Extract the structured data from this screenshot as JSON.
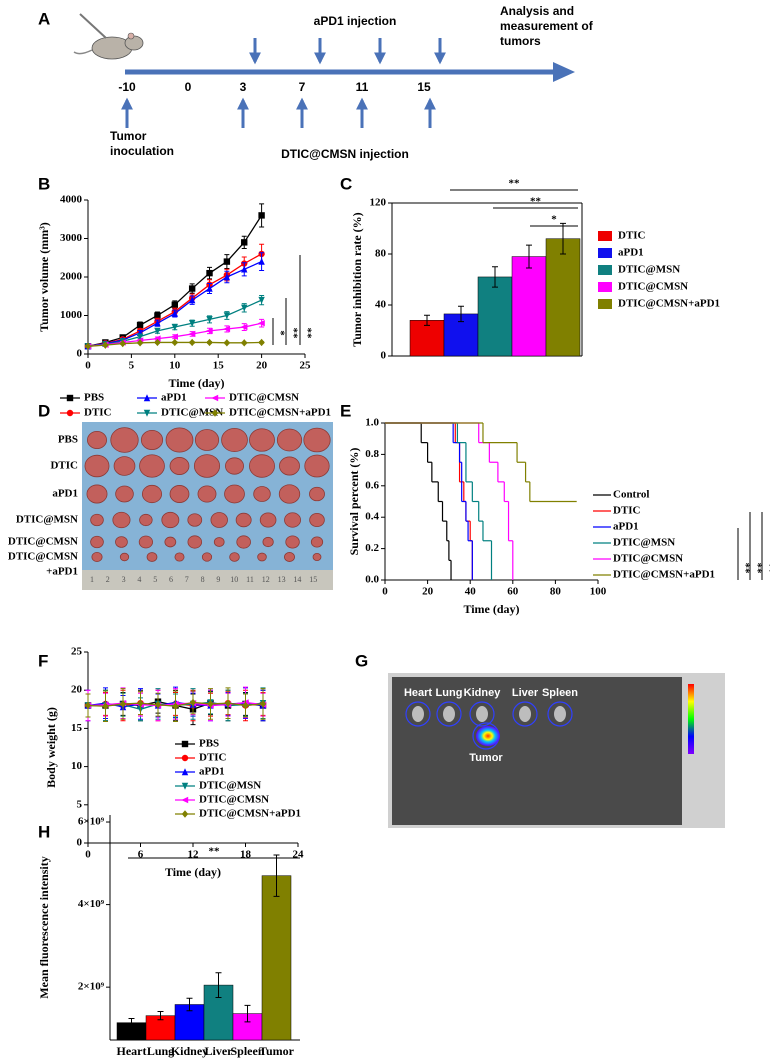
{
  "timeline": {
    "panel_label": "A",
    "top_label": "aPD1 injection",
    "end_label": [
      "Analysis and",
      "measurement of",
      "tumors"
    ],
    "days": [
      -10,
      0,
      3,
      7,
      11,
      15
    ],
    "start_label": [
      "Tumor",
      "inoculation"
    ],
    "bottom_label": "DTIC@CMSN injection"
  },
  "chart_data": [
    {
      "type": "line",
      "panel_label": "B",
      "xlabel": "Time (day)",
      "ylabel": "Tumor volume (mm³)",
      "x": [
        0,
        2,
        4,
        6,
        8,
        10,
        12,
        14,
        16,
        18,
        20
      ],
      "xlim": [
        0,
        25
      ],
      "xticks": [
        0,
        5,
        10,
        15,
        20,
        25
      ],
      "ylim": [
        0,
        4000
      ],
      "yticks": [
        0,
        1000,
        2000,
        3000,
        4000
      ],
      "legend": "bottom",
      "series": [
        {
          "name": "PBS",
          "color": "#000000",
          "marker": "square",
          "values": [
            200,
            300,
            430,
            750,
            1000,
            1280,
            1700,
            2100,
            2400,
            2900,
            3600
          ],
          "errors": [
            20,
            30,
            50,
            80,
            90,
            100,
            120,
            150,
            180,
            160,
            300
          ]
        },
        {
          "name": "DTIC",
          "color": "#ff0000",
          "marker": "circle",
          "values": [
            200,
            280,
            380,
            600,
            850,
            1100,
            1450,
            1800,
            2050,
            2350,
            2600
          ],
          "errors": [
            20,
            25,
            40,
            60,
            80,
            90,
            110,
            130,
            150,
            170,
            250
          ]
        },
        {
          "name": "aPD1",
          "color": "#0000ff",
          "marker": "triangle",
          "values": [
            200,
            270,
            360,
            550,
            800,
            1050,
            1400,
            1700,
            2000,
            2200,
            2400
          ],
          "errors": [
            20,
            25,
            40,
            60,
            80,
            90,
            110,
            130,
            150,
            170,
            230
          ]
        },
        {
          "name": "DTIC@MSN",
          "color": "#008080",
          "marker": "triangle-down",
          "values": [
            200,
            250,
            330,
            450,
            600,
            700,
            800,
            900,
            1000,
            1200,
            1400
          ],
          "errors": [
            20,
            20,
            30,
            50,
            60,
            70,
            80,
            90,
            100,
            110,
            120
          ]
        },
        {
          "name": "DTIC@CMSN",
          "color": "#ff00ff",
          "marker": "triangle-left",
          "values": [
            200,
            240,
            300,
            350,
            400,
            450,
            520,
            600,
            650,
            700,
            800
          ],
          "errors": [
            20,
            20,
            25,
            30,
            40,
            50,
            60,
            70,
            80,
            90,
            100
          ]
        },
        {
          "name": "DTIC@CMSN+aPD1",
          "color": "#808000",
          "marker": "diamond",
          "values": [
            200,
            230,
            270,
            290,
            300,
            300,
            300,
            300,
            290,
            290,
            300
          ],
          "errors": [
            20,
            20,
            20,
            20,
            20,
            20,
            20,
            20,
            20,
            20,
            20
          ]
        }
      ],
      "significance": [
        "*",
        "**",
        "**"
      ]
    },
    {
      "type": "bar",
      "panel_label": "C",
      "ylabel": "Tumor inhibition rate (%)",
      "categories": [
        "DTIC",
        "aPD1",
        "DTIC@MSN",
        "DTIC@CMSN",
        "DTIC@CMSN+aPD1"
      ],
      "values": [
        28,
        33,
        62,
        78,
        92
      ],
      "errors": [
        4,
        6,
        8,
        9,
        12
      ],
      "colors": [
        "#ee0000",
        "#1010ee",
        "#108080",
        "#ff00ff",
        "#808000"
      ],
      "ylim": [
        0,
        120
      ],
      "yticks": [
        0,
        40,
        80,
        120
      ],
      "legend": "right",
      "frame": "box",
      "significance": [
        "**",
        "**",
        "*"
      ]
    },
    {
      "type": "step",
      "panel_label": "E",
      "xlabel": "Time (day)",
      "ylabel": "Survival percent (%)",
      "xlim": [
        0,
        100
      ],
      "xticks": [
        0,
        20,
        40,
        60,
        80,
        100
      ],
      "ylim": [
        0,
        1
      ],
      "yticks": [
        {
          "value": 0,
          "label": "0.0"
        },
        0.2,
        0.4,
        0.6,
        0.8,
        {
          "value": 1,
          "label": "1.0"
        }
      ],
      "legend": "right",
      "series": [
        {
          "name": "Control",
          "color": "#000000",
          "x": [
            0,
            17,
            20,
            22,
            25,
            27,
            29,
            30,
            31
          ],
          "values": [
            1,
            0.875,
            0.75,
            0.625,
            0.5,
            0.375,
            0.25,
            0.125,
            0
          ]
        },
        {
          "name": "DTIC",
          "color": "#ff0000",
          "x": [
            0,
            33,
            35,
            37,
            38,
            40,
            41
          ],
          "values": [
            1,
            0.875,
            0.625,
            0.5,
            0.375,
            0.25,
            0
          ]
        },
        {
          "name": "aPD1",
          "color": "#0000ff",
          "x": [
            0,
            32,
            35,
            36,
            38,
            39,
            41
          ],
          "values": [
            1,
            0.875,
            0.75,
            0.5,
            0.375,
            0.25,
            0
          ]
        },
        {
          "name": "DTIC@MSN",
          "color": "#008080",
          "x": [
            0,
            34,
            38,
            41,
            44,
            46,
            50
          ],
          "values": [
            1,
            0.875,
            0.625,
            0.5,
            0.375,
            0.25,
            0
          ]
        },
        {
          "name": "DTIC@CMSN",
          "color": "#ff00ff",
          "x": [
            0,
            44,
            49,
            53,
            56,
            58,
            60
          ],
          "values": [
            1,
            0.875,
            0.75,
            0.625,
            0.5,
            0.25,
            0
          ]
        },
        {
          "name": "DTIC@CMSN+aPD1",
          "color": "#808000",
          "x": [
            0,
            46,
            62,
            66,
            68,
            90
          ],
          "values": [
            1,
            0.875,
            0.75,
            0.625,
            0.5,
            0.5
          ]
        }
      ],
      "significance": [
        "**",
        "**",
        "**"
      ]
    },
    {
      "type": "line",
      "panel_label": "F",
      "xlabel": "Time (day)",
      "ylabel": "Body weight (g)",
      "x": [
        0,
        2,
        4,
        6,
        8,
        10,
        12,
        14,
        16,
        18,
        20
      ],
      "xlim": [
        0,
        24
      ],
      "xticks": [
        0,
        6,
        12,
        18,
        24
      ],
      "ylim": [
        0,
        25
      ],
      "yticks": [
        0,
        5,
        10,
        15,
        20,
        25
      ],
      "legend": "inside",
      "series": [
        {
          "name": "PBS",
          "color": "#000000",
          "marker": "square",
          "values": [
            18,
            18,
            18.2,
            18,
            18.5,
            18,
            17.5,
            18.3,
            18,
            18.2,
            18
          ],
          "errors": [
            1.5,
            2,
            1.5,
            2,
            1.5,
            2,
            2,
            1.5,
            2,
            1.5,
            2
          ]
        },
        {
          "name": "DTIC",
          "color": "#ff0000",
          "marker": "circle",
          "values": [
            18,
            18.2,
            18,
            18.3,
            18,
            18.2,
            18,
            18.1,
            18.3,
            18,
            18.2
          ],
          "errors": [
            1.5,
            1.5,
            2,
            1.5,
            2,
            1.5,
            2,
            1.5,
            1.5,
            2,
            1.5
          ]
        },
        {
          "name": "aPD1",
          "color": "#0000ff",
          "marker": "triangle",
          "values": [
            18,
            18.3,
            17.8,
            18.2,
            18,
            18.4,
            18.1,
            18,
            18.2,
            18.3,
            18
          ],
          "errors": [
            2,
            2,
            1.5,
            2,
            1.5,
            2,
            1.5,
            2,
            1.5,
            2,
            2
          ]
        },
        {
          "name": "DTIC@MSN",
          "color": "#008080",
          "marker": "triangle-down",
          "values": [
            18,
            18,
            18.1,
            17.5,
            18.2,
            18,
            18.2,
            18.4,
            18,
            18.1,
            18.3
          ],
          "errors": [
            1.5,
            2,
            1.5,
            1.5,
            2,
            1.5,
            2,
            1.5,
            2,
            1.5,
            2
          ]
        },
        {
          "name": "DTIC@CMSN",
          "color": "#ff00ff",
          "marker": "triangle-left",
          "values": [
            18,
            18.1,
            18.3,
            18.1,
            18,
            18.2,
            18.3,
            18,
            18.1,
            18.4,
            18.1
          ],
          "errors": [
            2,
            1.5,
            2,
            1.5,
            2,
            2,
            1.5,
            2,
            1.5,
            2,
            1.5
          ]
        },
        {
          "name": "DTIC@CMSN+aPD1",
          "color": "#808000",
          "marker": "diamond",
          "values": [
            18,
            17.9,
            18.2,
            18.3,
            18.1,
            17.9,
            18.4,
            18.2,
            18.3,
            18,
            18.2
          ],
          "errors": [
            1.5,
            2,
            2,
            1.5,
            1.5,
            2,
            1.5,
            2,
            2,
            1.5,
            2
          ]
        }
      ]
    },
    {
      "type": "bar",
      "panel_label": "H",
      "ylabel": "Mean fluorescence intensity",
      "categories": [
        "Heart",
        "Lung",
        "Kidney",
        "Liver",
        "Spleen",
        "Tumor"
      ],
      "values": [
        1140000000,
        1310000000,
        1580000000,
        2050000000,
        1360000000,
        4700000000
      ],
      "errors": [
        100000000,
        100000000,
        150000000,
        300000000,
        200000000,
        500000000
      ],
      "colors": [
        "#000000",
        "#ff0000",
        "#0000ff",
        "#108080",
        "#ff00ff",
        "#808000"
      ],
      "ylim": [
        720000000,
        6170000000
      ],
      "yticks": [
        {
          "value": 2000000000,
          "label": "2×10⁹"
        },
        {
          "value": 4000000000,
          "label": "4×10⁹"
        },
        {
          "value": 6000000000,
          "label": "6×10⁹"
        }
      ],
      "significance": [
        "**"
      ]
    }
  ],
  "photo": {
    "panel_label": "D",
    "row_labels": [
      [
        "PBS"
      ],
      [
        "DTIC"
      ],
      [
        "aPD1"
      ],
      [
        "DTIC@MSN"
      ],
      [
        "DTIC@CMSN"
      ],
      [
        "DTIC@CMSN",
        "+aPD1"
      ]
    ],
    "ruler": [
      1,
      2,
      3,
      4,
      5,
      6,
      7,
      8,
      9,
      10,
      11,
      12,
      13,
      14,
      15
    ]
  },
  "imaging": {
    "panel_label": "G",
    "organ_labels": [
      "Heart",
      "Lung",
      "Kidney",
      "Liver",
      "Spleen"
    ],
    "tumor_label": "Tumor"
  }
}
